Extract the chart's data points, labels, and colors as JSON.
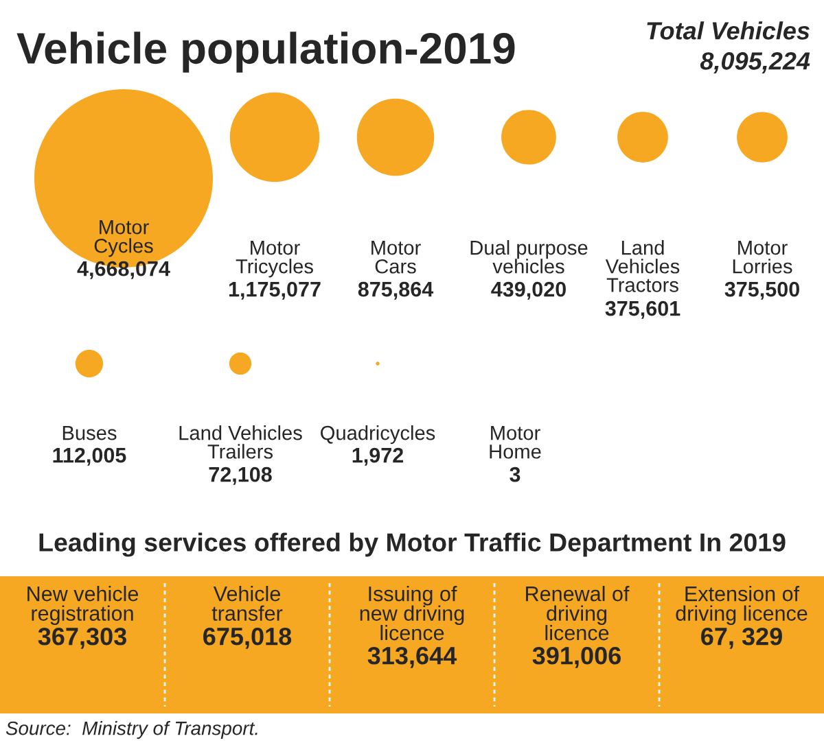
{
  "chart_data": [
    {
      "type": "other",
      "title": "Vehicle population-2019",
      "annotations": [
        "Total Vehicles",
        "8,095,224"
      ],
      "color": "#f7a823",
      "categories": [
        "Motor\nCycles",
        "Motor\nTricycles",
        "Motor\nCars",
        "Dual purpose\nvehicles",
        "Land\nVehicles\nTractors",
        "Motor\nLorries",
        "Buses",
        "Land Vehicles\nTrailers",
        "Quadricycles",
        "Motor\nHome"
      ],
      "values": [
        4668074,
        1175077,
        875864,
        439020,
        375601,
        375500,
        112005,
        72108,
        1972,
        3
      ],
      "value_labels": [
        "4,668,074",
        "1,175,077",
        "875,864",
        "439,020",
        "375,601",
        "375,500",
        "112,005",
        "72,108",
        "1,972",
        "3"
      ]
    },
    {
      "type": "other",
      "title": "Leading services offered by Motor Traffic Department In 2019",
      "color": "#f7a823",
      "categories": [
        "New vehicle\nregistration",
        "Vehicle\ntransfer",
        "Issuing of\nnew driving\nlicence",
        "Renewal of\ndriving\nlicence",
        "Extension of\ndriving licence"
      ],
      "value_labels": [
        "367,303",
        "675,018",
        "313,644",
        "391,006",
        "67, 329"
      ],
      "annotations": [
        "Source:  Ministry of Transport."
      ]
    }
  ]
}
